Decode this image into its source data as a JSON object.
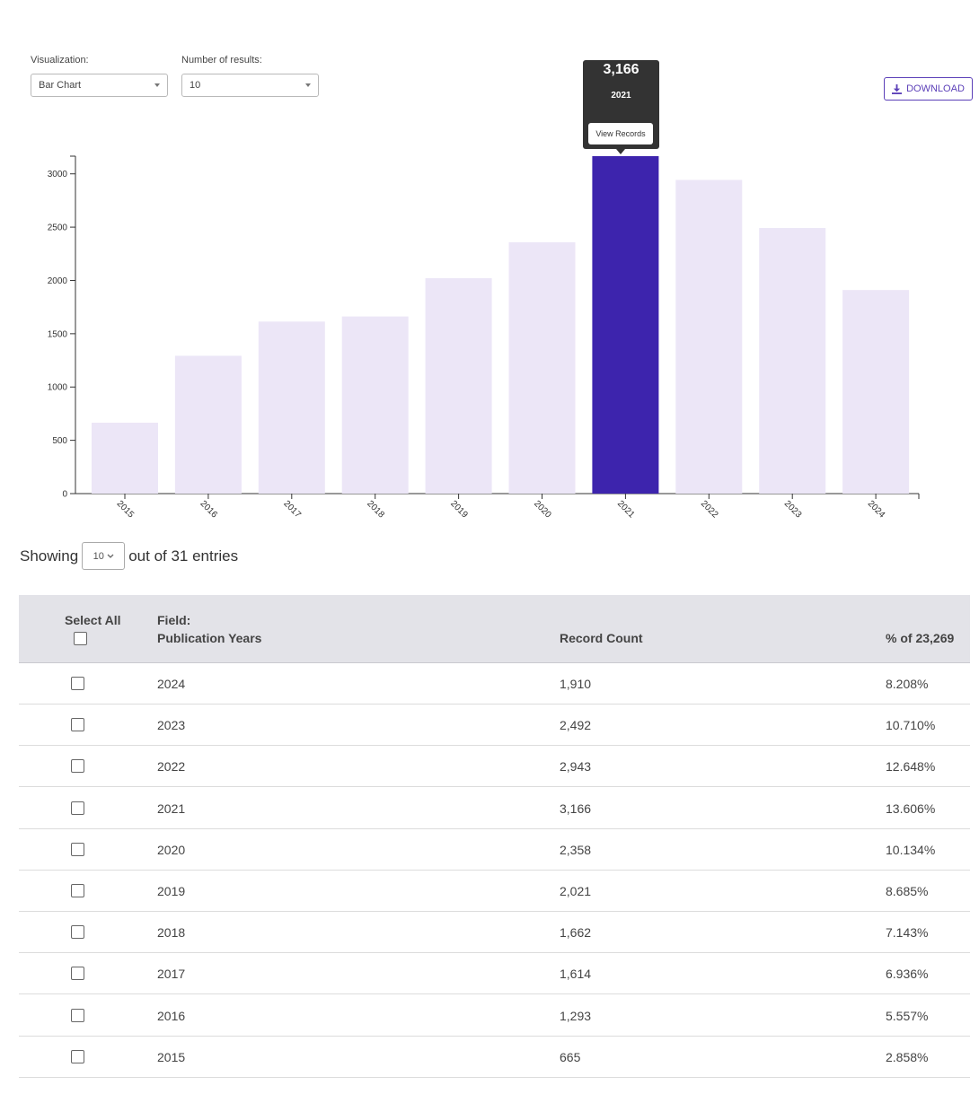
{
  "controls": {
    "visualization_label": "Visualization:",
    "visualization_value": "Bar Chart",
    "results_label": "Number of results:",
    "results_value": "10",
    "download_label": "DOWNLOAD"
  },
  "tooltip": {
    "value": "3,166",
    "year": "2021",
    "button": "View Records"
  },
  "chart_data": {
    "type": "bar",
    "categories": [
      "2015",
      "2016",
      "2017",
      "2018",
      "2019",
      "2020",
      "2021",
      "2022",
      "2023",
      "2024"
    ],
    "values": [
      665,
      1293,
      1614,
      1662,
      2021,
      2358,
      3166,
      2943,
      2492,
      1910
    ],
    "highlighted": "2021",
    "ylim": [
      0,
      3166
    ],
    "yticks": [
      0,
      500,
      1000,
      1500,
      2000,
      2500,
      3000
    ],
    "colors": {
      "bar": "#ece6f7",
      "highlight": "#3d24ad"
    }
  },
  "pagination": {
    "showing_label": "Showing",
    "page_size": "10",
    "suffix": "out of 31 entries"
  },
  "table": {
    "select_all": "Select All",
    "field_label": "Field:",
    "field_name": "Publication Years",
    "count_header": "Record Count",
    "pct_header": "% of 23,269",
    "rows": [
      {
        "year": "2024",
        "count": "1,910",
        "pct": "8.208%"
      },
      {
        "year": "2023",
        "count": "2,492",
        "pct": "10.710%"
      },
      {
        "year": "2022",
        "count": "2,943",
        "pct": "12.648%"
      },
      {
        "year": "2021",
        "count": "3,166",
        "pct": "13.606%"
      },
      {
        "year": "2020",
        "count": "2,358",
        "pct": "10.134%"
      },
      {
        "year": "2019",
        "count": "2,021",
        "pct": "8.685%"
      },
      {
        "year": "2018",
        "count": "1,662",
        "pct": "7.143%"
      },
      {
        "year": "2017",
        "count": "1,614",
        "pct": "6.936%"
      },
      {
        "year": "2016",
        "count": "1,293",
        "pct": "5.557%"
      },
      {
        "year": "2015",
        "count": "665",
        "pct": "2.858%"
      }
    ]
  }
}
